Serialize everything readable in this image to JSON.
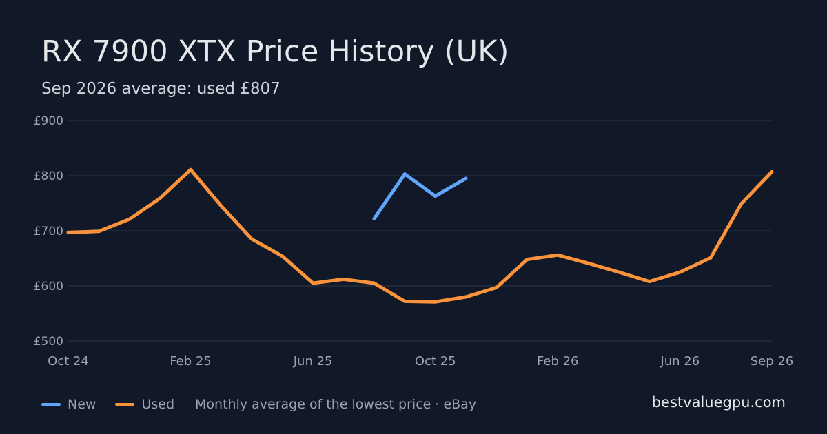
{
  "header": {
    "title": "RX 7900 XTX Price History (UK)",
    "subtitle": "Sep 2026 average: used £807"
  },
  "footer": {
    "note": "Monthly average of the lowest price · eBay",
    "site": "bestvaluegpu.com"
  },
  "colors": {
    "background": "#111827",
    "grid": "#263142",
    "axis_text": "#9ca3af",
    "new": "#60a5fa",
    "used": "#fb923c"
  },
  "chart_data": {
    "type": "line",
    "title": "RX 7900 XTX Price History (UK)",
    "subtitle": "Sep 2026 average: used £807",
    "xlabel": "",
    "ylabel": "",
    "x": [
      "2024-10",
      "2024-11",
      "2024-12",
      "2025-01",
      "2025-02",
      "2025-03",
      "2025-04",
      "2025-05",
      "2025-06",
      "2025-07",
      "2025-08",
      "2025-09",
      "2025-10",
      "2025-11",
      "2025-12",
      "2026-01",
      "2026-02",
      "2026-03",
      "2026-04",
      "2026-05",
      "2026-06",
      "2026-07",
      "2026-08",
      "2026-09"
    ],
    "x_ticks": [
      {
        "x": "2024-10",
        "label": "Oct 24"
      },
      {
        "x": "2025-02",
        "label": "Feb 25"
      },
      {
        "x": "2025-06",
        "label": "Jun 25"
      },
      {
        "x": "2025-10",
        "label": "Oct 25"
      },
      {
        "x": "2026-02",
        "label": "Feb 26"
      },
      {
        "x": "2026-06",
        "label": "Jun 26"
      },
      {
        "x": "2026-09",
        "label": "Sep 26"
      }
    ],
    "y_ticks": [
      {
        "value": 500,
        "label": "£500"
      },
      {
        "value": 600,
        "label": "£600"
      },
      {
        "value": 700,
        "label": "£700"
      },
      {
        "value": 800,
        "label": "£800"
      },
      {
        "value": 900,
        "label": "£900"
      }
    ],
    "ylim": [
      500,
      900
    ],
    "grid": true,
    "legend_position": "bottom-left",
    "series": [
      {
        "name": "New",
        "color": "#60a5fa",
        "values": [
          null,
          null,
          null,
          null,
          null,
          null,
          null,
          null,
          null,
          null,
          722,
          803,
          763,
          795,
          null,
          null,
          null,
          null,
          null,
          null,
          null,
          null,
          null,
          null
        ]
      },
      {
        "name": "Used",
        "color": "#fb923c",
        "values": [
          697,
          699,
          721,
          759,
          811,
          745,
          685,
          654,
          605,
          612,
          605,
          572,
          571,
          580,
          597,
          648,
          656,
          641,
          625,
          608,
          625,
          651,
          749,
          807
        ]
      }
    ]
  }
}
